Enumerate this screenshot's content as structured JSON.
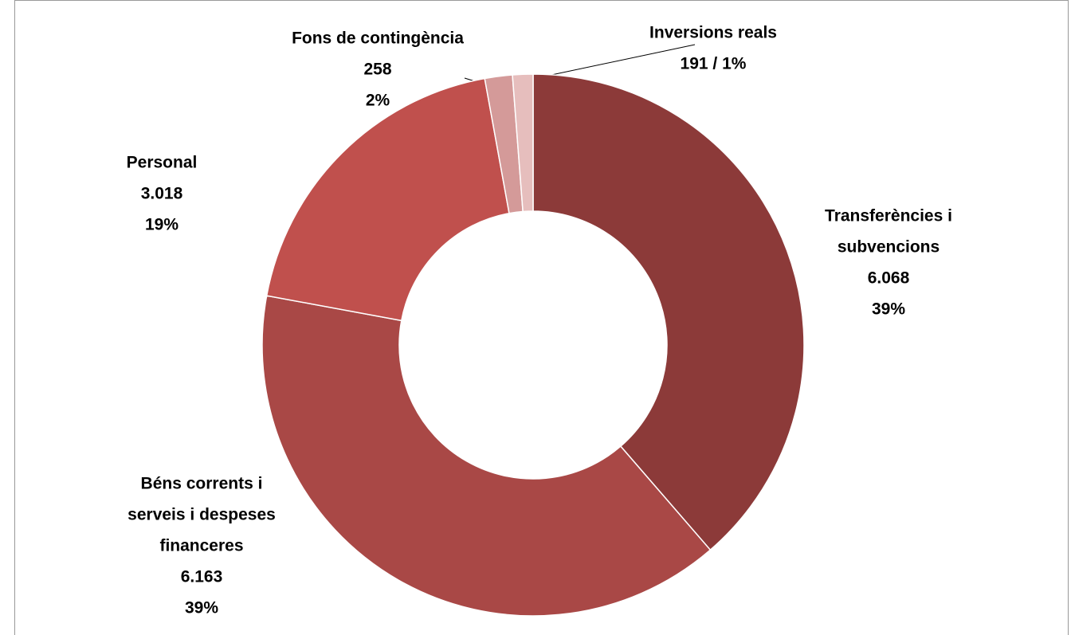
{
  "chart_data": {
    "type": "donut",
    "categories": [
      [
        "Transferències i",
        "subvencions"
      ],
      [
        "Béns corrents i",
        "serveis i despeses",
        "financeres"
      ],
      [
        "Personal"
      ],
      [
        "Fons de contingència"
      ],
      [
        "Inversions reals"
      ]
    ],
    "values": [
      6068,
      6163,
      3018,
      258,
      191
    ],
    "value_labels": [
      "6.068",
      "6.163",
      "3.018",
      "258",
      "191 / 1%"
    ],
    "percent_labels": [
      "39%",
      "39%",
      "19%",
      "2%",
      null
    ],
    "colors": [
      "#8c3a39",
      "#a94846",
      "#c0504d",
      "#d49a99",
      "#e6bebd"
    ]
  }
}
